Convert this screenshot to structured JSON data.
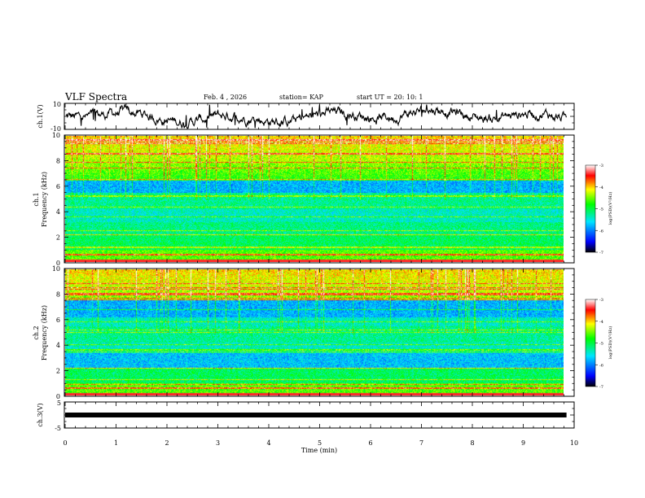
{
  "header": {
    "title": "VLF Spectra",
    "date": "Feb. 4 , 2026",
    "station": "station= KAP",
    "start": "start UT =  20: 10: 1"
  },
  "colors": {
    "spectrum": [
      "#ff00ff",
      "#0000ff",
      "#00ffff",
      "#00ff00",
      "#ffff00",
      "#ff8000",
      "#ff0000",
      "#ffffff"
    ]
  },
  "chart_data": [
    {
      "type": "line",
      "ylabel": "ch.1(V)",
      "ylim": [
        -10,
        10
      ],
      "yticks": [
        "10",
        "-10"
      ],
      "x_range": [
        0,
        9.85
      ],
      "note": "noisy waveform around 0 V with slow wander"
    },
    {
      "type": "heatmap",
      "ylabel": "ch.1\nFrequency (kHz)",
      "ylim": [
        0,
        10
      ],
      "yticks": [
        "0",
        "2",
        "4",
        "6",
        "8",
        "10"
      ],
      "colorbar": {
        "label": "log(PSD)(V²/Hz)",
        "range": [
          -7,
          -3
        ],
        "ticks": [
          "-3",
          "-4",
          "-5",
          "-6",
          "-7"
        ]
      }
    },
    {
      "type": "heatmap",
      "ylabel": "ch.2\nFrequency (kHz)",
      "ylim": [
        0,
        10
      ],
      "yticks": [
        "0",
        "2",
        "4",
        "6",
        "8",
        "10"
      ],
      "colorbar": {
        "label": "log(PSD)(V²/Hz)",
        "range": [
          -7,
          -3
        ],
        "ticks": [
          "-3",
          "-4",
          "-5",
          "-6",
          "-7"
        ]
      }
    },
    {
      "type": "line",
      "ylabel": "ch.3(V)",
      "ylim": [
        -5,
        5
      ],
      "yticks": [
        "5",
        "-5"
      ],
      "series": [
        {
          "x": [
            0,
            9.85
          ],
          "y": [
            0,
            0
          ]
        }
      ]
    }
  ],
  "xaxis": {
    "label": "Time (min)",
    "range": [
      0,
      10
    ],
    "ticks": [
      "0",
      "1",
      "2",
      "3",
      "4",
      "5",
      "6",
      "7",
      "8",
      "9",
      "10"
    ]
  }
}
